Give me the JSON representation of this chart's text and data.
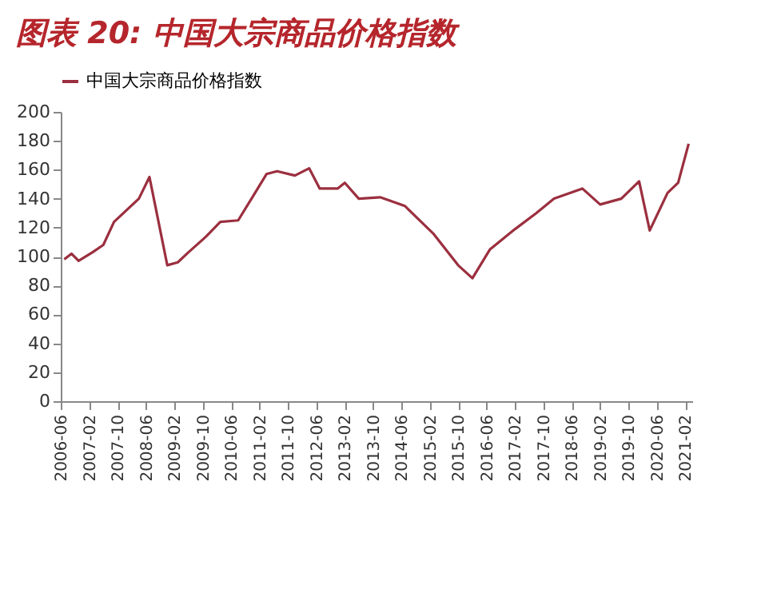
{
  "chart_data": {
    "type": "line",
    "title": "图表 20:  中国大宗商品价格指数",
    "x": [
      "2006-07",
      "2006-09",
      "2006-11",
      "2007-03",
      "2007-06",
      "2007-09",
      "2008-04",
      "2008-07",
      "2008-12",
      "2009-03",
      "2009-06",
      "2009-11",
      "2010-03",
      "2010-08",
      "2010-12",
      "2011-04",
      "2011-07",
      "2011-12",
      "2012-04",
      "2012-07",
      "2012-12",
      "2013-02",
      "2013-06",
      "2013-12",
      "2014-07",
      "2015-03",
      "2015-10",
      "2016-02",
      "2016-07",
      "2017-02",
      "2017-08",
      "2018-01",
      "2018-09",
      "2019-02",
      "2019-08",
      "2020-01",
      "2020-04",
      "2020-09",
      "2020-12",
      "2021-03"
    ],
    "series": [
      {
        "name": "中国大宗商品价格指数",
        "color": "#9b2f3f",
        "values": [
          98,
          102,
          97,
          103,
          108,
          124,
          140,
          155,
          94,
          96,
          103,
          114,
          124,
          125,
          141,
          157,
          159,
          156,
          161,
          147,
          147,
          151,
          140,
          141,
          135,
          116,
          94,
          85,
          105,
          119,
          130,
          140,
          147,
          136,
          140,
          152,
          118,
          144,
          151,
          178
        ]
      }
    ],
    "xlim": [
      "2006-06",
      "2021-04"
    ],
    "xticks": [
      "2006-06",
      "2007-02",
      "2007-10",
      "2008-06",
      "2009-02",
      "2009-10",
      "2010-06",
      "2011-02",
      "2011-10",
      "2012-06",
      "2013-02",
      "2013-10",
      "2014-06",
      "2015-02",
      "2015-10",
      "2016-06",
      "2017-02",
      "2017-10",
      "2018-06",
      "2019-02",
      "2019-10",
      "2020-06",
      "2021-02"
    ],
    "ylim": [
      0,
      200
    ],
    "yticks": [
      0,
      20,
      40,
      60,
      80,
      100,
      120,
      140,
      160,
      180,
      200
    ],
    "grid": false,
    "legend": "top"
  }
}
